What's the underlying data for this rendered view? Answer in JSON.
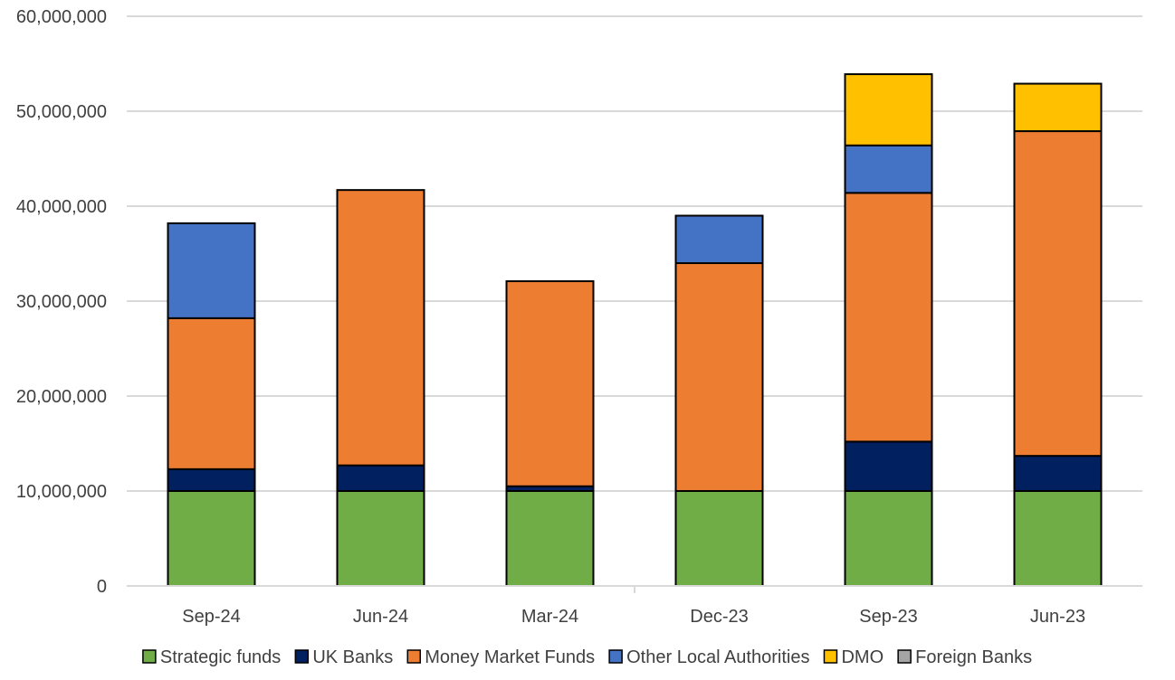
{
  "chart_data": {
    "type": "bar",
    "stacked": true,
    "title": "",
    "xlabel": "",
    "ylabel": "",
    "ylim": [
      0,
      60000000
    ],
    "y_ticks": [
      0,
      10000000,
      20000000,
      30000000,
      40000000,
      50000000,
      60000000
    ],
    "grid": true,
    "legend_position": "bottom",
    "categories": [
      "Sep-24",
      "Jun-24",
      "Mar-24",
      "Dec-23",
      "Sep-23",
      "Jun-23"
    ],
    "series": [
      {
        "name": "Strategic funds",
        "color": "#70ad47",
        "values": [
          10000000,
          10000000,
          10000000,
          10000000,
          10000000,
          10000000
        ]
      },
      {
        "name": "UK Banks",
        "color": "#002060",
        "values": [
          2300000,
          2700000,
          500000,
          0,
          5200000,
          3700000
        ]
      },
      {
        "name": "Money Market Funds",
        "color": "#ed7d31",
        "values": [
          15900000,
          29000000,
          21600000,
          24000000,
          26200000,
          34200000
        ]
      },
      {
        "name": "Other Local Authorities",
        "color": "#4472c4",
        "values": [
          10000000,
          0,
          0,
          5000000,
          5000000,
          0
        ]
      },
      {
        "name": "DMO",
        "color": "#ffc000",
        "values": [
          0,
          0,
          0,
          0,
          7500000,
          5000000
        ]
      },
      {
        "name": "Foreign Banks",
        "color": "#a5a5a5",
        "values": [
          0,
          0,
          0,
          0,
          0,
          0
        ]
      }
    ]
  }
}
